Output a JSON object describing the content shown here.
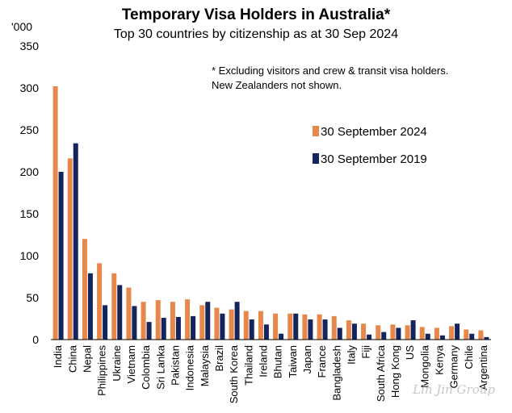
{
  "chart_data": {
    "type": "bar",
    "title": "Temporary Visa Holders in Australia*",
    "subtitle": "Top 30 countries by citizenship as at 30 Sep 2024",
    "ylabel": "'000",
    "ylim": [
      0,
      350
    ],
    "yticks": [
      0,
      50,
      100,
      150,
      200,
      250,
      300,
      350
    ],
    "grid": false,
    "legend_position": "right",
    "note_lines": [
      "* Excluding visitors and crew & transit visa holders.",
      "New Zealanders not shown."
    ],
    "categories": [
      "India",
      "China",
      "Nepal",
      "Philippines",
      "Ukraine",
      "Vietnam",
      "Colombia",
      "Sri Lanka",
      "Pakistan",
      "Indonesia",
      "Malaysia",
      "Brazil",
      "South Korea",
      "Thailand",
      "Ireland",
      "Bhutan",
      "Taiwan",
      "Japan",
      "France",
      "Bangladesh",
      "Italy",
      "Fiji",
      "South Africa",
      "Hong Kong",
      "US",
      "Mongolia",
      "Kenya",
      "Germany",
      "Chile",
      "Argentina"
    ],
    "series": [
      {
        "name": "30 September 2024",
        "color": "#e8874a",
        "values": [
          302,
          216,
          120,
          91,
          79,
          62,
          45,
          47,
          45,
          48,
          41,
          38,
          36,
          34,
          34,
          31,
          31,
          30,
          30,
          28,
          23,
          19,
          17,
          18,
          17,
          15,
          14,
          16,
          12,
          11
        ]
      },
      {
        "name": "30 September 2019",
        "color": "#16245e",
        "values": [
          200,
          234,
          79,
          41,
          65,
          40,
          21,
          26,
          27,
          28,
          45,
          31,
          45,
          24,
          18,
          7,
          31,
          24,
          24,
          14,
          19,
          6,
          9,
          14,
          23,
          7,
          5,
          19,
          7,
          3
        ]
      }
    ]
  },
  "watermark": "Lin Jin Group"
}
